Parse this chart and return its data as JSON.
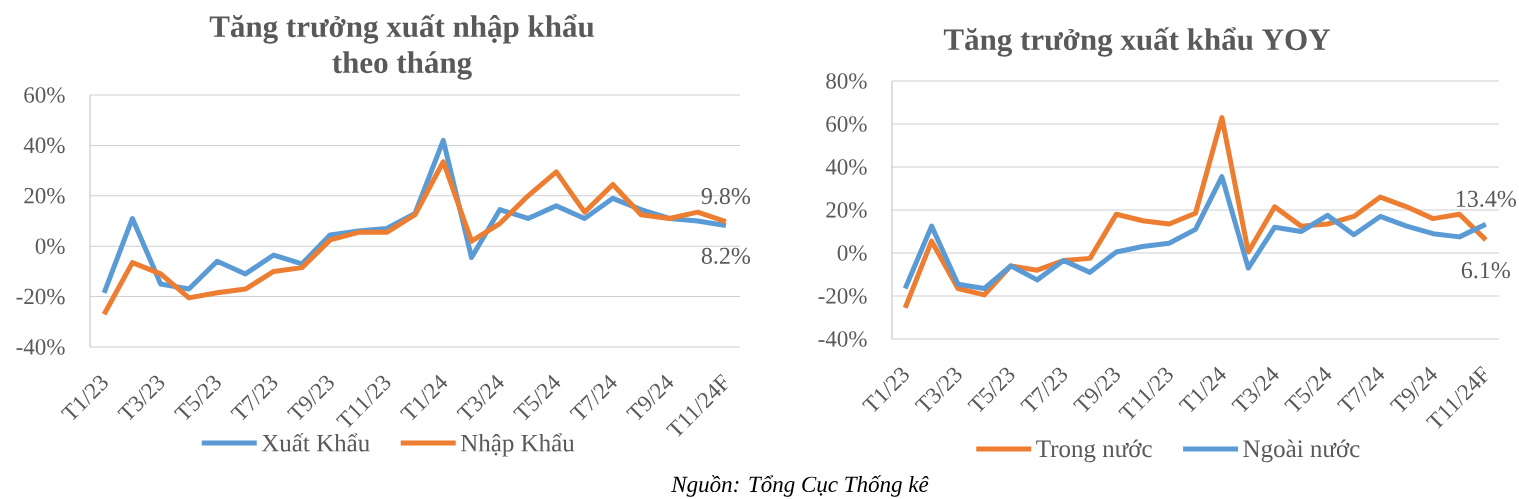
{
  "chart_data": [
    {
      "type": "line",
      "title": "Tăng trưởng xuất nhập khẩu theo tháng",
      "categories": [
        "T1/23",
        null,
        "T3/23",
        null,
        "T5/23",
        null,
        "T7/23",
        null,
        "T9/23",
        null,
        "T11/23",
        null,
        "T1/24",
        null,
        "T3/24",
        null,
        "T5/24",
        null,
        "T7/24",
        null,
        "T9/24",
        null,
        "T11/24F"
      ],
      "series": [
        {
          "name": "Xuất Khẩu",
          "color": "#5b9bd5",
          "values": [
            -18.5,
            11,
            -15,
            -17,
            -6,
            -11,
            -3.5,
            -7,
            4.5,
            6,
            7,
            13,
            42,
            -4.5,
            14.5,
            11,
            16,
            11,
            19,
            14.5,
            11,
            10,
            8.2
          ],
          "value_labels": [
            null,
            null,
            null,
            null,
            null,
            null,
            null,
            null,
            null,
            null,
            null,
            null,
            null,
            null,
            null,
            null,
            null,
            null,
            null,
            null,
            null,
            null,
            "8.2%"
          ]
        },
        {
          "name": "Nhập Khẩu",
          "color": "#ed7d31",
          "values": [
            -27,
            -6.5,
            -11,
            -20.5,
            -18.5,
            -17,
            -10,
            -8.5,
            2.5,
            5.5,
            5.5,
            12.5,
            33.5,
            2,
            9,
            20,
            29.5,
            13.5,
            24.5,
            12.5,
            11,
            13.5,
            9.8
          ],
          "value_labels": [
            null,
            null,
            null,
            null,
            null,
            null,
            null,
            null,
            null,
            null,
            null,
            null,
            null,
            null,
            null,
            null,
            null,
            null,
            null,
            null,
            null,
            null,
            "9.8%"
          ]
        }
      ],
      "ylim": [
        -40,
        60
      ],
      "yticks": [
        {
          "value": -40,
          "label": "-40%"
        },
        {
          "value": -20,
          "label": "-20%"
        },
        {
          "value": 0,
          "label": "0%"
        },
        {
          "value": 20,
          "label": "20%"
        },
        {
          "value": 40,
          "label": "40%"
        },
        {
          "value": 60,
          "label": "60%"
        }
      ],
      "grid": "y",
      "legend": "bottom",
      "annotations": [
        "Nguồn: Tổng Cục Thống kê"
      ]
    },
    {
      "type": "line",
      "title": "Tăng trưởng xuất khẩu YOY",
      "categories": [
        "T1/23",
        null,
        "T3/23",
        null,
        "T5/23",
        null,
        "T7/23",
        null,
        "T9/23",
        null,
        "T11/23",
        null,
        "T1/24",
        null,
        "T3/24",
        null,
        "T5/24",
        null,
        "T7/24",
        null,
        "T9/24",
        null,
        "T11/24F"
      ],
      "series": [
        {
          "name": "Trong nước",
          "color": "#ed7d31",
          "values": [
            -25.5,
            5.5,
            -16.5,
            -19.5,
            -6,
            -8,
            -3.5,
            -2.5,
            18,
            15,
            13.5,
            18.5,
            63,
            0.5,
            21.5,
            12.5,
            13.5,
            17,
            26,
            21.5,
            16,
            18,
            6.1
          ],
          "value_labels": [
            null,
            null,
            null,
            null,
            null,
            null,
            null,
            null,
            null,
            null,
            null,
            null,
            null,
            null,
            null,
            null,
            null,
            null,
            null,
            null,
            null,
            null,
            "6.1%"
          ]
        },
        {
          "name": "Ngoài nước",
          "color": "#5b9bd5",
          "values": [
            -16.5,
            12.5,
            -14.5,
            -16.5,
            -6,
            -12.5,
            -3.5,
            -9,
            0.5,
            3,
            4.5,
            11,
            35.5,
            -7,
            12,
            10,
            17.5,
            8.5,
            17,
            12.5,
            9,
            7.5,
            13.4
          ],
          "value_labels": [
            null,
            null,
            null,
            null,
            null,
            null,
            null,
            null,
            null,
            null,
            null,
            null,
            null,
            null,
            null,
            null,
            null,
            null,
            null,
            null,
            null,
            null,
            "13.4%"
          ]
        }
      ],
      "ylim": [
        -40,
        80
      ],
      "yticks": [
        {
          "value": -40,
          "label": "-40%"
        },
        {
          "value": -20,
          "label": "-20%"
        },
        {
          "value": 0,
          "label": "0%"
        },
        {
          "value": 20,
          "label": "20%"
        },
        {
          "value": 40,
          "label": "40%"
        },
        {
          "value": 60,
          "label": "60%"
        },
        {
          "value": 80,
          "label": "80%"
        }
      ],
      "grid": "y",
      "legend": "bottom"
    }
  ]
}
